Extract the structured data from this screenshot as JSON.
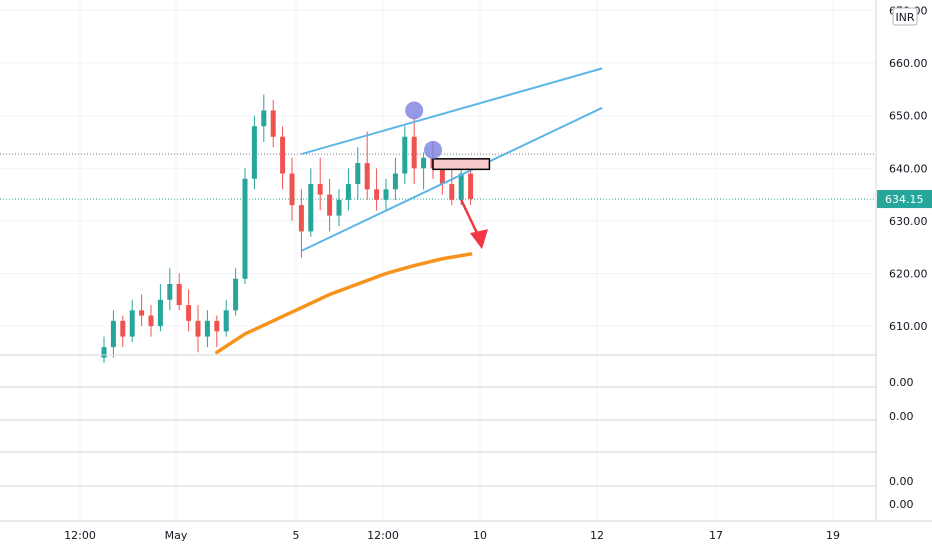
{
  "chart_data": {
    "type": "candlestick",
    "currency_label": "INR",
    "y_ticks": [
      "670.00",
      "660.00",
      "650.00",
      "640.00",
      "630.00",
      "620.00",
      "610.00"
    ],
    "y_tick_values": [
      670,
      660,
      650,
      640,
      630,
      620,
      610
    ],
    "ylim": [
      604.5,
      672
    ],
    "x_ticks": [
      "12:00",
      "May",
      "5",
      "12:00",
      "10",
      "12",
      "17",
      "19"
    ],
    "last_price": "634.15",
    "last_price_value": 634.15,
    "reference_level": 642.7,
    "indicator_panes": [
      {
        "value_label": "0.00"
      },
      {
        "value_label": "0.00"
      },
      {
        "value_label": "0.00"
      },
      {
        "value_label": "0.00"
      }
    ],
    "candles": [
      {
        "o": 604,
        "h": 608,
        "l": 603,
        "c": 606
      },
      {
        "o": 606,
        "h": 613,
        "l": 604,
        "c": 611
      },
      {
        "o": 611,
        "h": 612,
        "l": 606,
        "c": 608
      },
      {
        "o": 608,
        "h": 615,
        "l": 607,
        "c": 613
      },
      {
        "o": 613,
        "h": 616,
        "l": 610,
        "c": 612
      },
      {
        "o": 612,
        "h": 614,
        "l": 608,
        "c": 610
      },
      {
        "o": 610,
        "h": 618,
        "l": 609,
        "c": 615
      },
      {
        "o": 615,
        "h": 621,
        "l": 613,
        "c": 618
      },
      {
        "o": 618,
        "h": 620,
        "l": 613,
        "c": 614
      },
      {
        "o": 614,
        "h": 617,
        "l": 609,
        "c": 611
      },
      {
        "o": 611,
        "h": 614,
        "l": 605,
        "c": 608
      },
      {
        "o": 608,
        "h": 613,
        "l": 606,
        "c": 611
      },
      {
        "o": 611,
        "h": 612,
        "l": 606,
        "c": 609
      },
      {
        "o": 609,
        "h": 615,
        "l": 608,
        "c": 613
      },
      {
        "o": 613,
        "h": 621,
        "l": 612,
        "c": 619
      },
      {
        "o": 619,
        "h": 640,
        "l": 618,
        "c": 638
      },
      {
        "o": 638,
        "h": 650,
        "l": 636,
        "c": 648
      },
      {
        "o": 648,
        "h": 654,
        "l": 645,
        "c": 651
      },
      {
        "o": 651,
        "h": 653,
        "l": 644,
        "c": 646
      },
      {
        "o": 646,
        "h": 648,
        "l": 636,
        "c": 639
      },
      {
        "o": 639,
        "h": 642,
        "l": 630,
        "c": 633
      },
      {
        "o": 633,
        "h": 636,
        "l": 623,
        "c": 628
      },
      {
        "o": 628,
        "h": 640,
        "l": 627,
        "c": 637
      },
      {
        "o": 637,
        "h": 642,
        "l": 632,
        "c": 635
      },
      {
        "o": 635,
        "h": 638,
        "l": 628,
        "c": 631
      },
      {
        "o": 631,
        "h": 636,
        "l": 629,
        "c": 634
      },
      {
        "o": 634,
        "h": 640,
        "l": 632,
        "c": 637
      },
      {
        "o": 637,
        "h": 644,
        "l": 634,
        "c": 641
      },
      {
        "o": 641,
        "h": 647,
        "l": 634,
        "c": 636
      },
      {
        "o": 636,
        "h": 640,
        "l": 632,
        "c": 634
      },
      {
        "o": 634,
        "h": 638,
        "l": 632,
        "c": 636
      },
      {
        "o": 636,
        "h": 642,
        "l": 634,
        "c": 639
      },
      {
        "o": 639,
        "h": 648,
        "l": 637,
        "c": 646
      },
      {
        "o": 646,
        "h": 650,
        "l": 637,
        "c": 640
      },
      {
        "o": 640,
        "h": 643,
        "l": 636,
        "c": 642
      },
      {
        "o": 642,
        "h": 645,
        "l": 638,
        "c": 640
      },
      {
        "o": 640,
        "h": 641,
        "l": 635,
        "c": 637
      },
      {
        "o": 637,
        "h": 640,
        "l": 633,
        "c": 634
      },
      {
        "o": 634,
        "h": 640,
        "l": 633,
        "c": 639
      },
      {
        "o": 639,
        "h": 640,
        "l": 633,
        "c": 634.15
      }
    ],
    "moving_average": [
      {
        "i": 12,
        "v": 605.0
      },
      {
        "i": 15,
        "v": 608.5
      },
      {
        "i": 18,
        "v": 611.0
      },
      {
        "i": 21,
        "v": 613.5
      },
      {
        "i": 24,
        "v": 616.0
      },
      {
        "i": 27,
        "v": 618.0
      },
      {
        "i": 30,
        "v": 620.0
      },
      {
        "i": 33,
        "v": 621.5
      },
      {
        "i": 36,
        "v": 622.8
      },
      {
        "i": 39,
        "v": 623.7
      }
    ],
    "channel_upper": [
      {
        "i": 21,
        "v": 642.7
      },
      {
        "i": 53,
        "v": 659.0
      }
    ],
    "channel_lower": [
      {
        "i": 21,
        "v": 624.3
      },
      {
        "i": 53,
        "v": 651.5
      }
    ],
    "highlight_points": [
      {
        "i": 33,
        "v": 651.0
      },
      {
        "i": 35,
        "v": 643.5
      }
    ],
    "zone": {
      "i0": 35,
      "i1": 41,
      "v_top": 641.8,
      "v_bottom": 639.8
    },
    "arrow": {
      "i_from": 38,
      "v_from": 634.0,
      "i_to": 40,
      "v_to": 625.0
    }
  }
}
